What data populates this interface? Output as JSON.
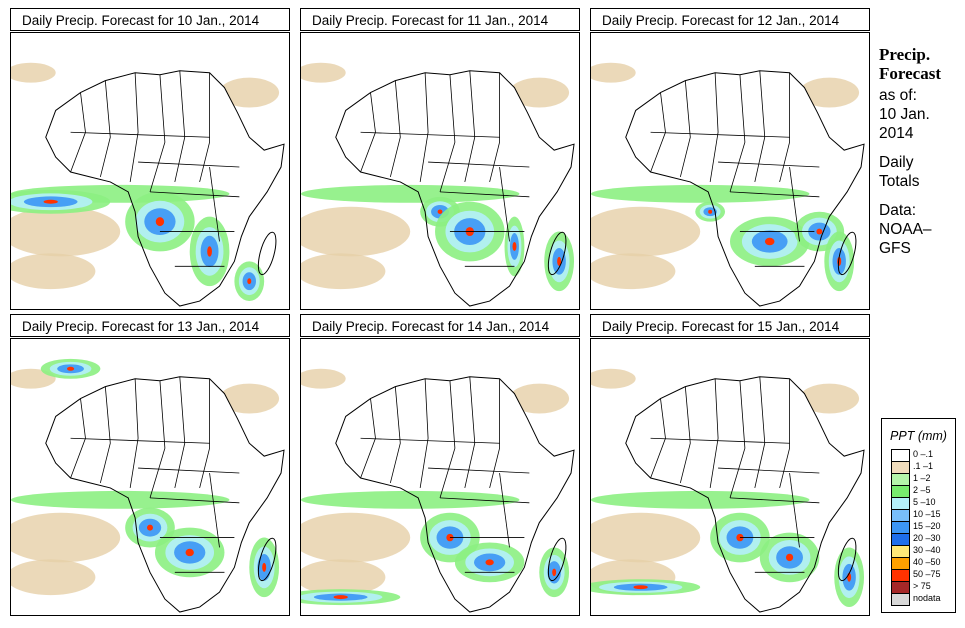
{
  "panels": [
    {
      "title": "Daily Precip. Forecast for  10 Jan., 2014",
      "date": "10 Jan., 2014"
    },
    {
      "title": "Daily Precip. Forecast for  11 Jan., 2014",
      "date": "11 Jan., 2014"
    },
    {
      "title": "Daily Precip. Forecast for  12 Jan., 2014",
      "date": "12 Jan., 2014"
    },
    {
      "title": "Daily Precip. Forecast for  13 Jan., 2014",
      "date": "13 Jan., 2014"
    },
    {
      "title": "Daily Precip. Forecast for  14 Jan., 2014",
      "date": "14 Jan., 2014"
    },
    {
      "title": "Daily Precip. Forecast for  15 Jan., 2014",
      "date": "15 Jan., 2014"
    }
  ],
  "side": {
    "heading1": "Precip.",
    "heading2": "Forecast",
    "asof": "as of:",
    "date1": "10 Jan.",
    "date2": "2014",
    "totals1": "Daily",
    "totals2": "Totals",
    "data1": "Data:",
    "data2": "NOAA–",
    "data3": "GFS"
  },
  "legend": {
    "title": "PPT (mm)",
    "items": [
      {
        "label": "0 –.1",
        "color": "#ffffff"
      },
      {
        "label": ".1 –1",
        "color": "#f0dcbc"
      },
      {
        "label": "1 –2",
        "color": "#b4f5aa"
      },
      {
        "label": "2 –5",
        "color": "#78eb6e"
      },
      {
        "label": "5 –10",
        "color": "#b4f0fa"
      },
      {
        "label": "10 –15",
        "color": "#78befa"
      },
      {
        "label": "15 –20",
        "color": "#3c96f5"
      },
      {
        "label": "20 –30",
        "color": "#1e6eeb"
      },
      {
        "label": "30 –40",
        "color": "#ffe878"
      },
      {
        "label": "40 –50",
        "color": "#ffa000"
      },
      {
        "label": "50 –75",
        "color": "#ff3200"
      },
      {
        "label": "> 75",
        "color": "#a52828"
      },
      {
        "label": "nodata",
        "color": "#d8d8d8"
      }
    ]
  },
  "colors": {
    "land_background": "#ffffff",
    "dry": "#e6cfa8",
    "light": "#8cf082",
    "moderate": "#b4f0fa",
    "heavy": "#3c96f5",
    "veryheavy": "#1e6eeb",
    "extreme": "#ff3200"
  }
}
